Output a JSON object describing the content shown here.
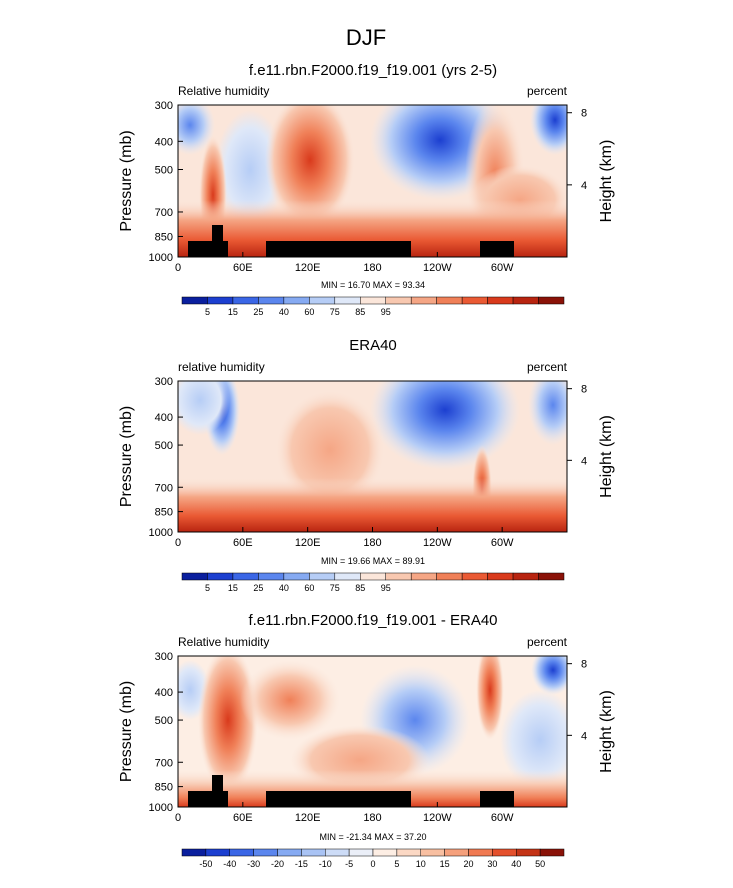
{
  "figure": {
    "title": "DJF"
  },
  "chart_data": [
    {
      "type": "heatmap",
      "title": "f.e11.rbn.F2000.f19_f19.001 (yrs 2-5)",
      "left_label": "Relative humidity",
      "right_label": "percent",
      "ylabel": "Pressure (mb)",
      "ylabel_right": "Height (km)",
      "x_ticks": [
        "0",
        "60E",
        "120E",
        "180",
        "120W",
        "60W"
      ],
      "x_tick_values": [
        0,
        60,
        120,
        180,
        240,
        300
      ],
      "xlim": [
        0,
        360
      ],
      "y_ticks": [
        "300",
        "400",
        "500",
        "700",
        "850",
        "1000"
      ],
      "y_tick_values": [
        300,
        400,
        500,
        700,
        850,
        1000
      ],
      "ylim": [
        1000,
        300
      ],
      "y_scale": "log",
      "height_ticks": [
        "8",
        "4"
      ],
      "height_tick_values": [
        8,
        4
      ],
      "stats": "MIN = 16.70  MAX = 93.34",
      "min": 16.7,
      "max": 93.34,
      "colorbar": {
        "labels": [
          "5",
          "15",
          "25",
          "40",
          "60",
          "75",
          "85",
          "95"
        ],
        "colors": [
          "#0a1f9e",
          "#1c3fd0",
          "#3a66e6",
          "#5b86ee",
          "#86aaf2",
          "#b6cdf6",
          "#dfe8f8",
          "#fbe6da",
          "#f8c8b0",
          "#f5a685",
          "#f08058",
          "#ea5a34",
          "#d93a1c",
          "#b82410",
          "#8a1208"
        ]
      },
      "terrain": "black"
    },
    {
      "type": "heatmap",
      "title": "ERA40",
      "left_label": "relative humidity",
      "right_label": "percent",
      "ylabel": "Pressure (mb)",
      "ylabel_right": "Height (km)",
      "x_ticks": [
        "0",
        "60E",
        "120E",
        "180",
        "120W",
        "60W"
      ],
      "x_tick_values": [
        0,
        60,
        120,
        180,
        240,
        300
      ],
      "xlim": [
        0,
        360
      ],
      "y_ticks": [
        "300",
        "400",
        "500",
        "700",
        "850",
        "1000"
      ],
      "y_tick_values": [
        300,
        400,
        500,
        700,
        850,
        1000
      ],
      "ylim": [
        1000,
        300
      ],
      "y_scale": "log",
      "height_ticks": [
        "8",
        "4"
      ],
      "height_tick_values": [
        8,
        4
      ],
      "stats": "MIN = 19.66  MAX = 89.91",
      "min": 19.66,
      "max": 89.91,
      "colorbar": {
        "labels": [
          "5",
          "15",
          "25",
          "40",
          "60",
          "75",
          "85",
          "95"
        ],
        "colors": [
          "#0a1f9e",
          "#1c3fd0",
          "#3a66e6",
          "#5b86ee",
          "#86aaf2",
          "#b6cdf6",
          "#dfe8f8",
          "#fbe6da",
          "#f8c8b0",
          "#f5a685",
          "#f08058",
          "#ea5a34",
          "#d93a1c",
          "#b82410",
          "#8a1208"
        ]
      },
      "terrain": "none"
    },
    {
      "type": "heatmap",
      "title": "f.e11.rbn.F2000.f19_f19.001 - ERA40",
      "left_label": "Relative humidity",
      "right_label": "percent",
      "ylabel": "Pressure (mb)",
      "ylabel_right": "Height (km)",
      "x_ticks": [
        "0",
        "60E",
        "120E",
        "180",
        "120W",
        "60W"
      ],
      "x_tick_values": [
        0,
        60,
        120,
        180,
        240,
        300
      ],
      "xlim": [
        0,
        360
      ],
      "y_ticks": [
        "300",
        "400",
        "500",
        "700",
        "850",
        "1000"
      ],
      "y_tick_values": [
        300,
        400,
        500,
        700,
        850,
        1000
      ],
      "ylim": [
        1000,
        300
      ],
      "y_scale": "log",
      "height_ticks": [
        "8",
        "4"
      ],
      "height_tick_values": [
        8,
        4
      ],
      "stats": "MIN = -21.34  MAX = 37.20",
      "min": -21.34,
      "max": 37.2,
      "colorbar": {
        "labels": [
          "-50",
          "-40",
          "-30",
          "-20",
          "-15",
          "-10",
          "-5",
          "0",
          "5",
          "10",
          "15",
          "20",
          "30",
          "40",
          "50"
        ],
        "colors": [
          "#0a1f9e",
          "#1c3fd0",
          "#3a66e6",
          "#5b86ee",
          "#86aaf2",
          "#a9c3f4",
          "#cddcf7",
          "#ebeff8",
          "#fdeee4",
          "#fbd8c4",
          "#f8bfa1",
          "#f5a07c",
          "#f07a52",
          "#e4502c",
          "#c43416",
          "#8a1208"
        ]
      },
      "terrain": "black"
    }
  ]
}
